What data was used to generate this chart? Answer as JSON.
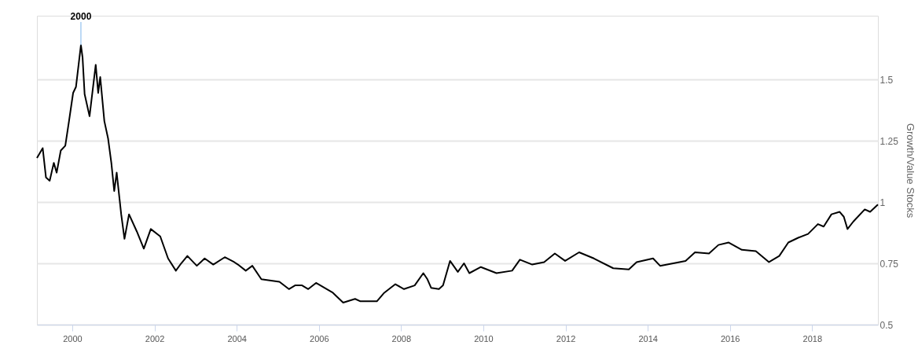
{
  "chart_data": {
    "type": "line",
    "ylabel": "Growth/Value Stocks",
    "x": [
      1999.14,
      1999.28,
      1999.36,
      1999.45,
      1999.55,
      1999.62,
      1999.72,
      1999.83,
      1999.92,
      2000.02,
      2000.09,
      2000.21,
      2000.25,
      2000.3,
      2000.42,
      2000.57,
      2000.63,
      2000.68,
      2000.78,
      2000.87,
      2000.95,
      2001.02,
      2001.08,
      2001.19,
      2001.27,
      2001.38,
      2001.57,
      2001.74,
      2001.91,
      2002.14,
      2002.33,
      2002.52,
      2002.65,
      2002.8,
      2003.03,
      2003.22,
      2003.43,
      2003.71,
      2003.94,
      2004.03,
      2004.22,
      2004.38,
      2004.6,
      2005.04,
      2005.27,
      2005.42,
      2005.59,
      2005.74,
      2005.93,
      2006.34,
      2006.59,
      2006.88,
      2007.01,
      2007.41,
      2007.59,
      2007.86,
      2008.07,
      2008.33,
      2008.54,
      2008.64,
      2008.73,
      2008.92,
      2009.02,
      2009.19,
      2009.38,
      2009.53,
      2009.66,
      2009.94,
      2010.32,
      2010.7,
      2010.89,
      2011.19,
      2011.48,
      2011.74,
      2011.99,
      2012.33,
      2012.69,
      2013.16,
      2013.54,
      2013.73,
      2014.13,
      2014.3,
      2014.92,
      2015.15,
      2015.49,
      2015.72,
      2015.97,
      2016.29,
      2016.63,
      2016.95,
      2017.2,
      2017.42,
      2017.67,
      2017.9,
      2018.14,
      2018.28,
      2018.47,
      2018.67,
      2018.77,
      2018.86,
      2019.0,
      2019.28,
      2019.41,
      2019.6
    ],
    "series": [
      {
        "color": "#000000",
        "values": [
          1.18,
          1.22,
          1.1,
          1.087,
          1.16,
          1.12,
          1.21,
          1.23,
          1.33,
          1.445,
          1.47,
          1.64,
          1.59,
          1.44,
          1.35,
          1.56,
          1.445,
          1.51,
          1.33,
          1.26,
          1.16,
          1.045,
          1.12,
          0.95,
          0.85,
          0.95,
          0.88,
          0.81,
          0.89,
          0.86,
          0.77,
          0.72,
          0.75,
          0.78,
          0.74,
          0.77,
          0.745,
          0.775,
          0.755,
          0.745,
          0.72,
          0.74,
          0.685,
          0.675,
          0.645,
          0.66,
          0.66,
          0.645,
          0.67,
          0.63,
          0.59,
          0.605,
          0.595,
          0.595,
          0.63,
          0.665,
          0.645,
          0.66,
          0.71,
          0.685,
          0.65,
          0.645,
          0.66,
          0.76,
          0.715,
          0.75,
          0.71,
          0.735,
          0.71,
          0.72,
          0.765,
          0.745,
          0.755,
          0.79,
          0.76,
          0.795,
          0.77,
          0.73,
          0.725,
          0.755,
          0.77,
          0.74,
          0.76,
          0.795,
          0.79,
          0.825,
          0.835,
          0.805,
          0.8,
          0.755,
          0.78,
          0.835,
          0.855,
          0.87,
          0.91,
          0.9,
          0.95,
          0.96,
          0.94,
          0.89,
          0.92,
          0.97,
          0.96,
          0.99
        ]
      }
    ],
    "xlim": [
      1999.14,
      2019.6
    ],
    "ylim": [
      0.5,
      1.76
    ],
    "xticks": [
      2000,
      2002,
      2004,
      2006,
      2008,
      2010,
      2012,
      2014,
      2016,
      2018
    ],
    "yticks": [
      0.5,
      0.75,
      1,
      1.25,
      1.5
    ],
    "grid": "y",
    "marker": "none",
    "line_style": "solid",
    "annotations": [
      {
        "text": "2000",
        "x": 2000.21,
        "y": 1.64
      }
    ]
  }
}
